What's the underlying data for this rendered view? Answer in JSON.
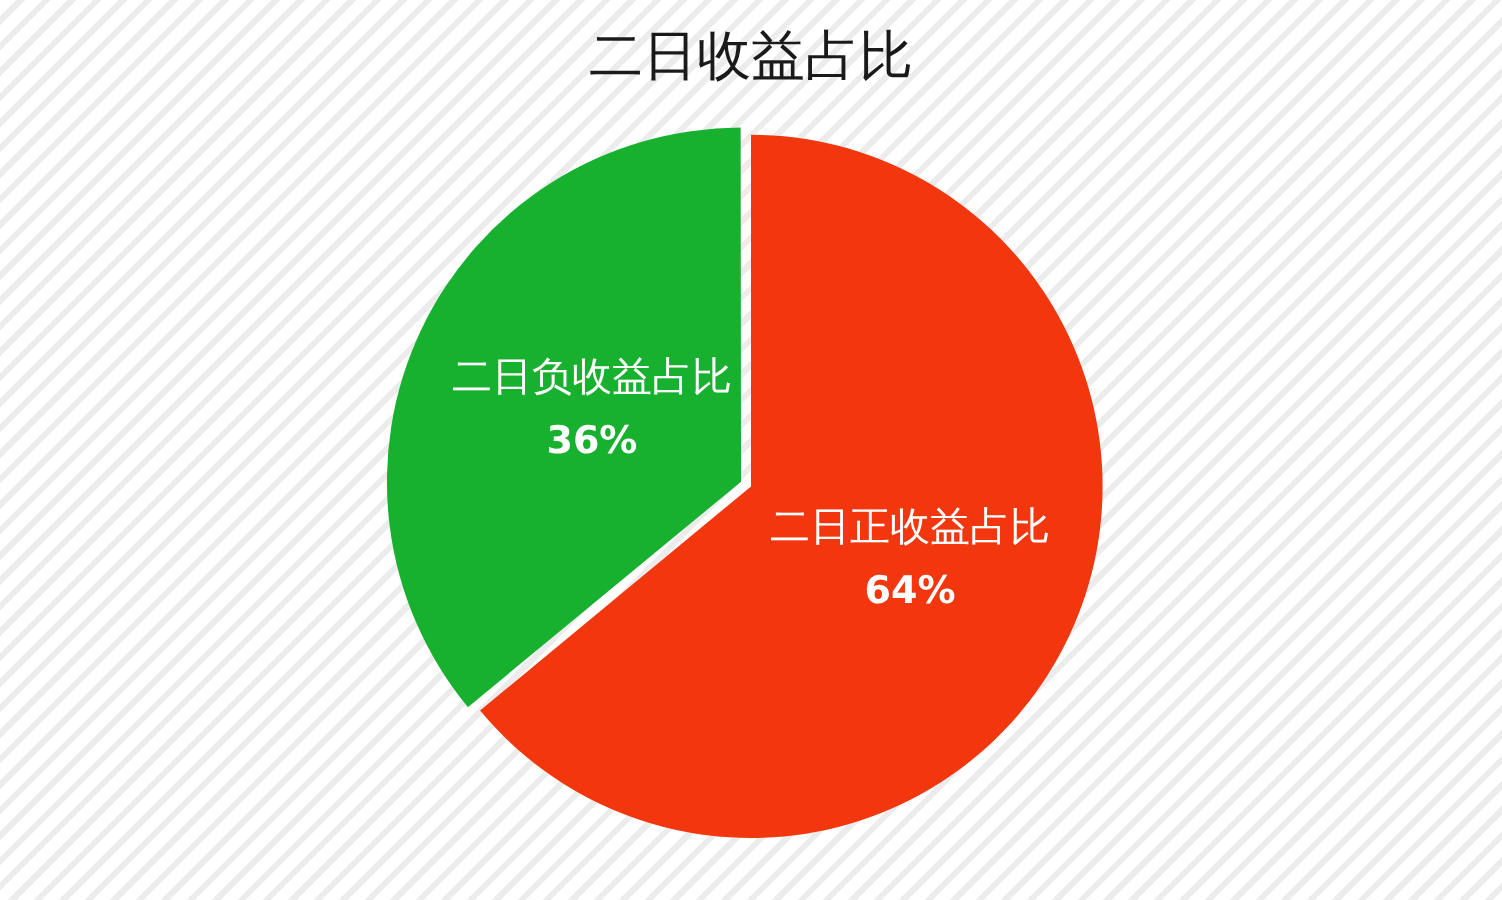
{
  "chart_data": {
    "type": "pie",
    "title": "二日收益占比",
    "categories": [
      "二日正收益占比",
      "二日负收益占比"
    ],
    "values": [
      64,
      36
    ],
    "colors": [
      "#f2360e",
      "#17b02f"
    ],
    "value_labels": [
      "64%",
      "36%"
    ]
  }
}
